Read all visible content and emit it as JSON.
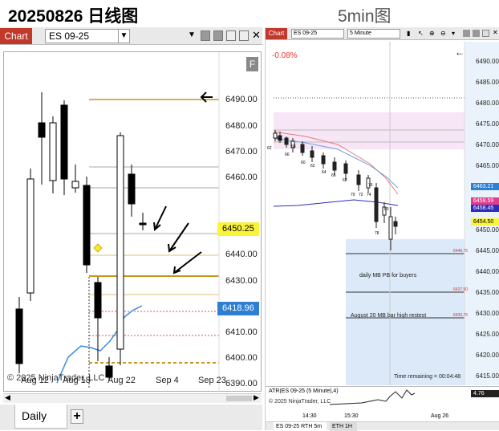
{
  "header": {
    "daily_title": "20250826 日线图",
    "intraday_title": "5min图"
  },
  "left": {
    "chart_label": "Chart",
    "instrument": "ES 09-25",
    "f_label": "F",
    "y_ticks": [
      "6490.00",
      "6480.00",
      "6470.00",
      "6460.00",
      "6450.00",
      "6440.00",
      "6430.00",
      "6420.00",
      "6410.00",
      "6400.00",
      "6390.00"
    ],
    "x_ticks": [
      "Aug 12",
      "Aug 18",
      "Aug 22",
      "Sep 4",
      "Sep 23"
    ],
    "price_tag_yellow": "6450.25",
    "price_tag_blue": "6418.96",
    "copyright": "© 2025 NinjaTrader, LLC",
    "tab_label": "Daily",
    "add_tab": "+",
    "colors": {
      "brand": "#c0392b",
      "yellow_tag": "#f9f339",
      "blue_tag": "#2f7fd1",
      "gold_line": "#c8961e"
    }
  },
  "right": {
    "chart_label": "Chart",
    "instrument": "ES 09-25",
    "interval": "5 Minute",
    "pct_change": "-0.08%",
    "y_ticks": [
      "6490.00",
      "6485.00",
      "6480.00",
      "6475.00",
      "6470.00",
      "6465.00",
      "6460.00",
      "6455.00",
      "6450.00",
      "6445.00",
      "6440.00",
      "6435.00",
      "6430.00",
      "6425.00",
      "6420.00",
      "6415.00"
    ],
    "tags": {
      "a": "6463.21",
      "b": "6459.59",
      "c": "6458.45",
      "d": "6454.50",
      "e": "4.76"
    },
    "note1": "daily MB PB for buyers",
    "note2": "August 20  MB bar high restest",
    "level1": "6446.75",
    "level2": "6437.50",
    "level3": "6430.75",
    "time_remaining": "Time remaining = 00:04:48",
    "atr_label": "ATR(ES 09-25 (5 Minute),4)",
    "copyright": "© 2025 NinjaTrader, LLC",
    "x_ticks": [
      "14:30",
      "15:30",
      "Aug 26"
    ],
    "tab1": "ES 09-25 RTH 5m",
    "tab2": "ETH 1H",
    "bar_numbers": [
      "62",
      "64",
      "66",
      "68",
      "60",
      "62",
      "64",
      "66",
      "68",
      "70",
      "72",
      "74",
      "76",
      "78",
      "80"
    ]
  }
}
